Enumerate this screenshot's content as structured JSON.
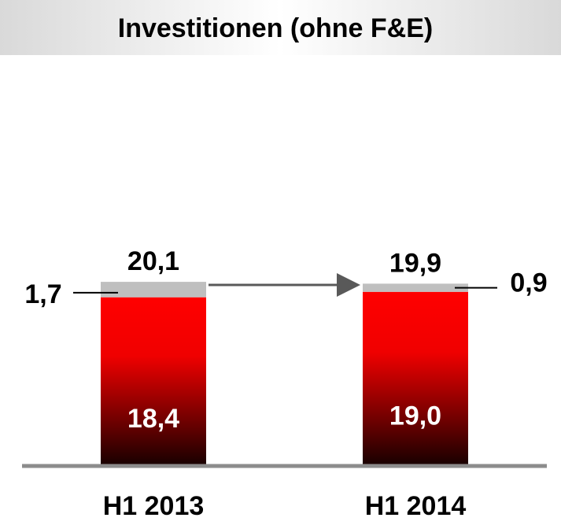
{
  "chart_data": {
    "type": "stacked_bar",
    "title": "Investitionen (ohne F&E)",
    "categories": [
      "H1 2013",
      "H1 2014"
    ],
    "series": [
      {
        "color": "#ff0000",
        "values": [
          18.4,
          19.0
        ],
        "value_labels": [
          "18,4",
          "19,0"
        ]
      },
      {
        "color": "#bfbfbf",
        "values": [
          1.7,
          0.9
        ],
        "value_labels": [
          "1,7",
          "0,9"
        ]
      }
    ],
    "totals": [
      20.1,
      19.9
    ],
    "total_labels": [
      "20,1",
      "19,9"
    ],
    "ylim": [
      0,
      26
    ]
  }
}
